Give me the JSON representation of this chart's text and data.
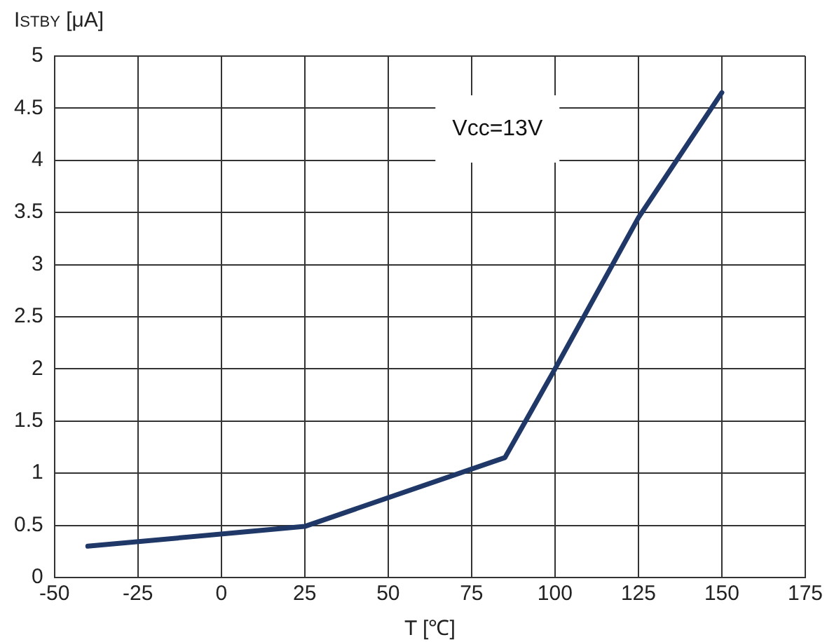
{
  "chart_data": {
    "type": "line",
    "xlabel": "T [℃]",
    "ylabel": "I$_{STBY}$ [μA]",
    "annotations": [
      "Vcc=13V"
    ],
    "x": [
      -40,
      25,
      85,
      100,
      125,
      150
    ],
    "series": [
      {
        "color": "#1f3868",
        "values": [
          0.3,
          0.49,
          1.15,
          2.0,
          3.45,
          4.65
        ]
      }
    ],
    "xlim": [
      -50,
      175
    ],
    "xticks": [
      -50,
      -25,
      0,
      25,
      50,
      75,
      100,
      125,
      150,
      175
    ],
    "ylim": [
      0,
      5
    ],
    "yticks": [
      0,
      0.5,
      1,
      1.5,
      2,
      2.5,
      3,
      3.5,
      4,
      4.5,
      5
    ],
    "grid": true,
    "legend": false,
    "marker": "none",
    "line_style": "solid"
  }
}
